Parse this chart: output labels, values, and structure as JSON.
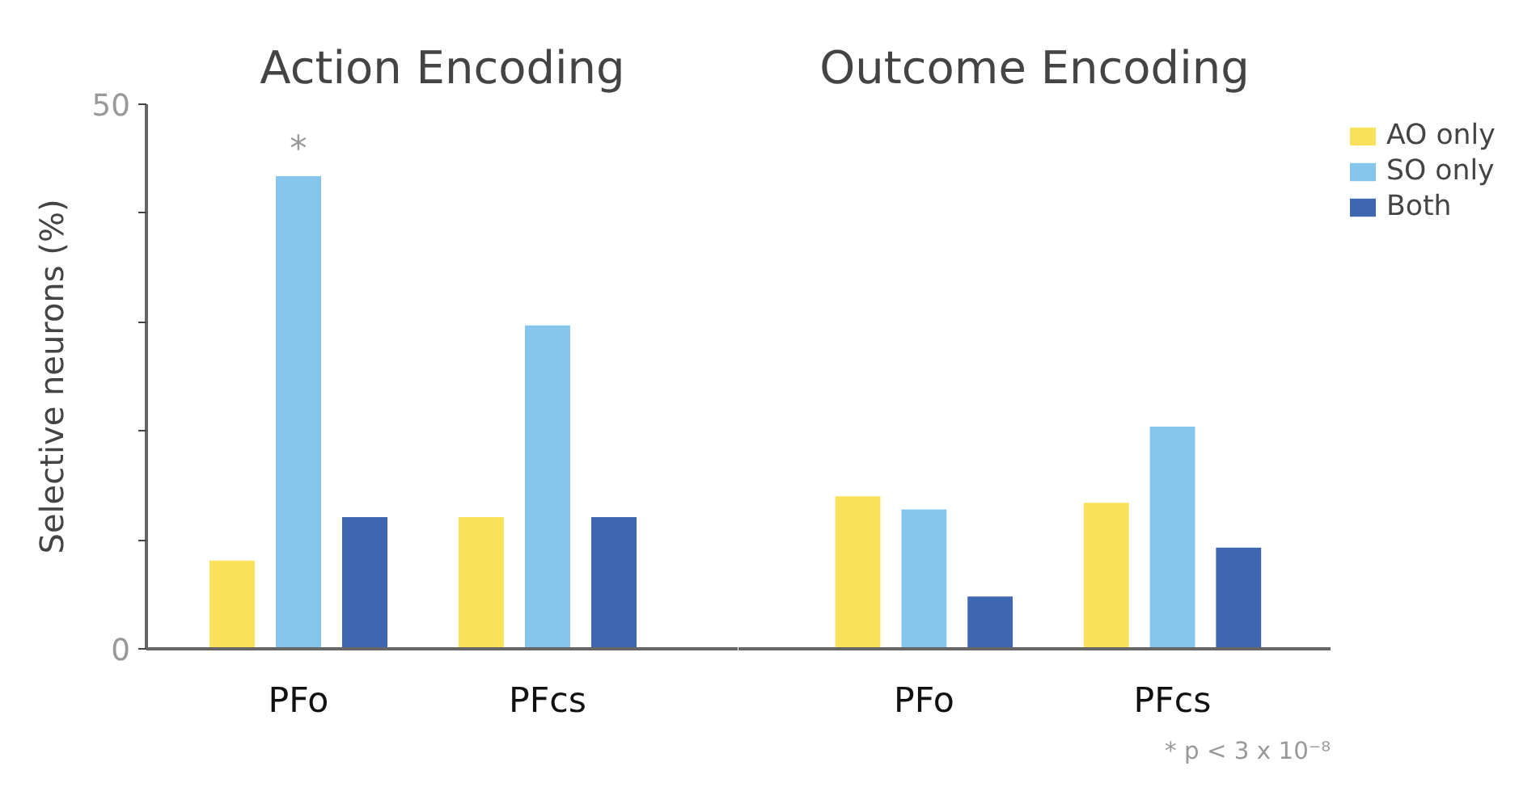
{
  "chart_data": [
    {
      "type": "bar",
      "title": "Action Encoding",
      "ylabel": "Selective neurons (%)",
      "categories": [
        "PFo",
        "PFcs"
      ],
      "series": [
        {
          "color": "#f9e25b",
          "values": [
            8.1,
            12.1
          ]
        },
        {
          "color": "#87c6ec",
          "values": [
            43.4,
            29.7
          ],
          "value_labels": [
            "*",
            null
          ]
        },
        {
          "color": "#3f67b1",
          "values": [
            12.1,
            12.1
          ]
        }
      ],
      "ylim": [
        0,
        50
      ],
      "yticks": [
        0,
        {
          "value": 10,
          "label": null
        },
        {
          "value": 20,
          "label": null
        },
        {
          "value": 30,
          "label": null
        },
        {
          "value": 40,
          "label": null
        },
        50
      ],
      "grid": false,
      "legend": false
    },
    {
      "type": "bar",
      "title": "Outcome Encoding",
      "categories": [
        "PFo",
        "PFcs"
      ],
      "series": [
        {
          "name": "AO only",
          "color": "#f9e25b",
          "values": [
            14.0,
            13.4
          ]
        },
        {
          "name": "SO only",
          "color": "#87c6ec",
          "values": [
            12.8,
            20.4
          ]
        },
        {
          "name": "Both",
          "color": "#3f67b1",
          "values": [
            4.8,
            9.3
          ]
        }
      ],
      "ylim": [
        0,
        50
      ],
      "tick_labels": "x",
      "annotations": [
        "* p < 3 x 10⁻⁸"
      ],
      "grid": false,
      "legend": "right"
    }
  ]
}
